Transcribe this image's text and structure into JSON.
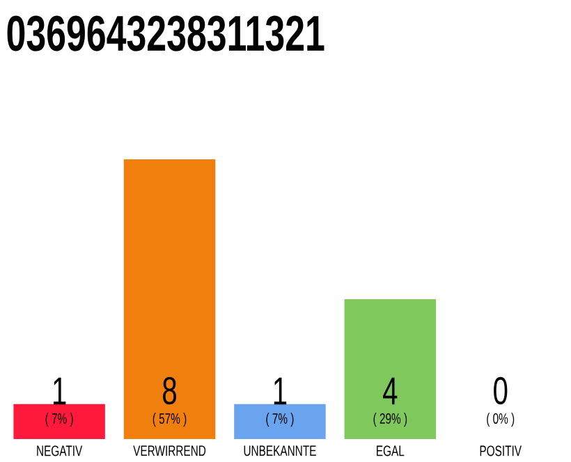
{
  "chart_data": {
    "type": "bar",
    "title": "0369643238311321",
    "categories": [
      "NEGATIV",
      "VERWIRREND",
      "UNBEKANNTE",
      "EGAL",
      "POSITIV"
    ],
    "values": [
      1,
      8,
      1,
      4,
      0
    ],
    "colors": [
      "#ff1a3c",
      "#f17f0d",
      "#6aa3ee",
      "#7ec85c",
      "#d0d0d0"
    ],
    "annotations": [
      "( 7% )",
      "( 57% )",
      "( 7% )",
      "( 29% )",
      "( 0% )"
    ],
    "data_labels": true
  }
}
